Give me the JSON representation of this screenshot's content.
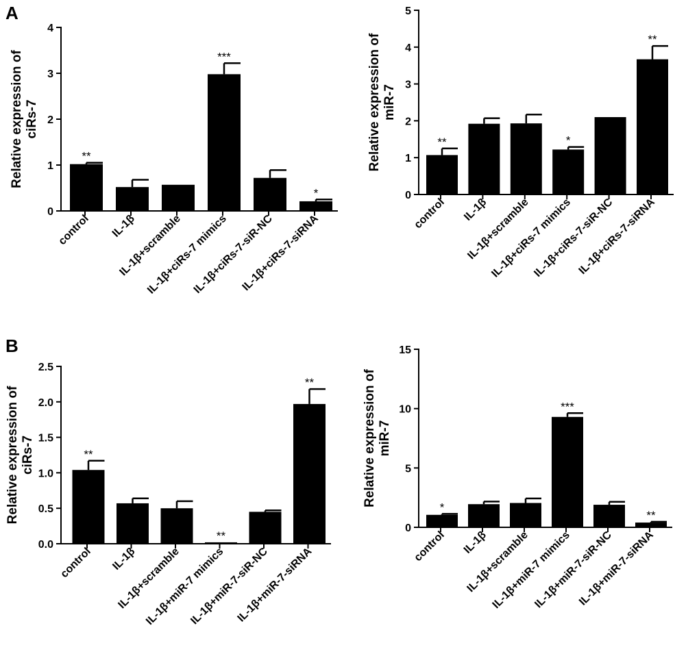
{
  "panel_labels": {
    "a": "A",
    "b": "B"
  },
  "colors": {
    "bar": "#000000",
    "axis": "#000000",
    "background": "#ffffff"
  },
  "chart_data": [
    {
      "id": "A-left",
      "panel": "A",
      "type": "bar",
      "ylabel_lines": [
        "Relative  expression of",
        "ciRs-7"
      ],
      "categories": [
        "control",
        "IL-1β",
        "IL-1β+scramble",
        "IL-1β+ciRs-7 mimics",
        "IL-1β+ciRs-7-siR-NC",
        "IL-1β+ciRs-7-siRNA"
      ],
      "values": [
        1.02,
        0.52,
        0.57,
        2.98,
        0.72,
        0.21
      ],
      "errors": [
        0.03,
        0.16,
        0.0,
        0.24,
        0.17,
        0.04
      ],
      "significance": [
        "**",
        "",
        "",
        "***",
        "",
        "*"
      ],
      "ylim": [
        0,
        4
      ],
      "yticks": [
        0,
        1,
        2,
        3,
        4
      ],
      "ytick_labels": [
        "0",
        "1",
        "2",
        "3",
        "4"
      ]
    },
    {
      "id": "A-right",
      "panel": "A",
      "type": "bar",
      "ylabel_lines": [
        "Relative  expression of",
        "miR-7"
      ],
      "categories": [
        "control",
        "IL-1β",
        "IL-1β+scramble",
        "IL-1β+ciRs-7 mimics",
        "IL-1β+ciRs-7-siR-NC",
        "IL-1β+ciRs-7-siRNA"
      ],
      "values": [
        1.07,
        1.92,
        1.93,
        1.22,
        2.1,
        3.67
      ],
      "errors": [
        0.18,
        0.15,
        0.24,
        0.07,
        0.0,
        0.36
      ],
      "significance": [
        "**",
        "",
        "",
        "*",
        "",
        "**"
      ],
      "ylim": [
        0,
        5
      ],
      "yticks": [
        0,
        1,
        2,
        3,
        4,
        5
      ],
      "ytick_labels": [
        "0",
        "1",
        "2",
        "3",
        "4",
        "5"
      ]
    },
    {
      "id": "B-left",
      "panel": "B",
      "type": "bar",
      "ylabel_lines": [
        "Relative  expression of",
        "ciRs-7"
      ],
      "categories": [
        "control",
        "IL-1β",
        "IL-1β+scramble",
        "IL-1β+miR-7 mimics",
        "IL-1β+miR-7-siR-NC",
        "IL-1β+miR-7-siRNA"
      ],
      "values": [
        1.04,
        0.57,
        0.5,
        0.02,
        0.45,
        1.97
      ],
      "errors": [
        0.13,
        0.07,
        0.1,
        0.0,
        0.02,
        0.21
      ],
      "significance": [
        "**",
        "",
        "",
        "**",
        "",
        "**"
      ],
      "ylim": [
        0,
        2.5
      ],
      "yticks": [
        0,
        0.5,
        1,
        1.5,
        2,
        2.5
      ],
      "ytick_labels": [
        "0.0",
        "0.5",
        "1.0",
        "1.5",
        "2.0",
        "2.5"
      ]
    },
    {
      "id": "B-right",
      "panel": "B",
      "type": "bar",
      "ylabel_lines": [
        "Relative  expression of",
        "miR-7"
      ],
      "categories": [
        "control",
        "IL-1β",
        "IL-1β+scramble",
        "IL-1β+miR-7 mimics",
        "IL-1β+miR-7-siR-NC",
        "IL-1β+miR-7-siRNA"
      ],
      "values": [
        1.05,
        1.95,
        2.05,
        9.3,
        1.9,
        0.4
      ],
      "errors": [
        0.08,
        0.22,
        0.38,
        0.32,
        0.25,
        0.07
      ],
      "significance": [
        "*",
        "",
        "",
        "***",
        "",
        "**"
      ],
      "ylim": [
        0,
        15
      ],
      "yticks": [
        0,
        5,
        10,
        15
      ],
      "ytick_labels": [
        "0",
        "5",
        "10",
        "15"
      ]
    }
  ]
}
